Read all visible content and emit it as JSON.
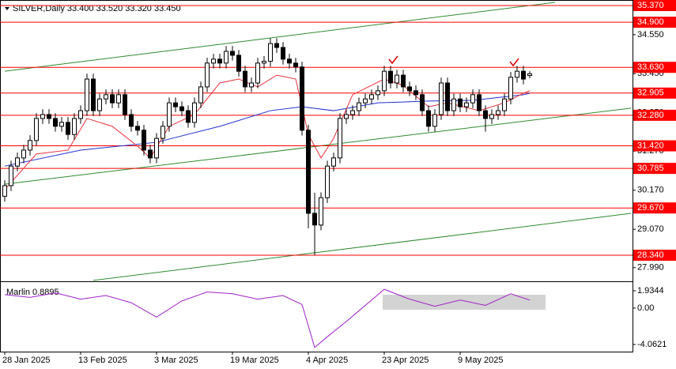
{
  "chart_data": {
    "type": "candlestick",
    "title": "SILVER,Daily  33.400 33.520 33.320 33.450",
    "categories": [
      "28 Jan 2025",
      null,
      null,
      null,
      null,
      null,
      null,
      null,
      null,
      null,
      null,
      null,
      "13 Feb 2025",
      null,
      null,
      null,
      null,
      null,
      null,
      null,
      null,
      null,
      null,
      null,
      "3 Mar 2025",
      null,
      null,
      null,
      null,
      null,
      null,
      null,
      null,
      null,
      null,
      null,
      "19 Mar 2025",
      null,
      null,
      null,
      null,
      null,
      null,
      null,
      null,
      null,
      null,
      null,
      "4 Apr 2025",
      null,
      null,
      null,
      null,
      null,
      null,
      null,
      null,
      null,
      null,
      null,
      "23 Apr 2025",
      null,
      null,
      null,
      null,
      null,
      null,
      null,
      null,
      null,
      null,
      null,
      "9 May 2025",
      null,
      null,
      null,
      null,
      null,
      null,
      null,
      null,
      null,
      null,
      null
    ],
    "open": [
      30.0,
      30.3,
      30.85,
      31.08,
      31.3,
      31.57,
      32.19,
      32.3,
      32.19,
      31.97,
      32.08,
      31.74,
      32.19,
      32.41,
      33.3,
      32.41,
      32.74,
      32.86,
      32.63,
      32.86,
      32.3,
      31.97,
      31.86,
      31.3,
      31.08,
      31.63,
      31.97,
      32.63,
      32.52,
      32.41,
      32.08,
      32.63,
      33.08,
      33.75,
      33.86,
      33.75,
      34.08,
      33.97,
      33.52,
      33.08,
      33.19,
      33.75,
      33.8,
      34.3,
      34.19,
      33.86,
      33.75,
      33.64,
      31.86,
      29.52,
      29.19,
      29.96,
      30.85,
      31.08,
      32.19,
      32.3,
      32.41,
      32.63,
      32.74,
      32.86,
      32.97,
      33.52,
      33.19,
      33.41,
      33.08,
      32.97,
      32.86,
      32.41,
      31.97,
      32.3,
      33.19,
      32.41,
      32.74,
      32.52,
      32.63,
      32.86,
      32.41,
      32.19,
      32.3,
      32.41,
      32.74,
      33.35,
      33.52,
      33.4
    ],
    "high": [
      30.45,
      31.0,
      31.23,
      31.45,
      31.72,
      32.34,
      32.45,
      32.45,
      32.34,
      32.23,
      32.23,
      32.34,
      32.56,
      33.45,
      33.45,
      32.89,
      33.01,
      33.01,
      33.01,
      33.01,
      32.45,
      32.12,
      32.01,
      31.45,
      31.78,
      32.12,
      32.78,
      32.78,
      32.67,
      32.56,
      32.78,
      33.23,
      33.9,
      34.01,
      34.01,
      34.23,
      34.23,
      34.12,
      33.67,
      33.34,
      33.9,
      33.95,
      34.45,
      34.45,
      34.34,
      34.01,
      33.9,
      33.79,
      32.01,
      30.1,
      30.11,
      31.0,
      31.23,
      32.34,
      32.45,
      32.56,
      32.78,
      32.89,
      33.01,
      33.12,
      33.67,
      33.67,
      33.56,
      33.56,
      33.23,
      33.12,
      33.01,
      32.56,
      32.45,
      33.34,
      33.34,
      32.89,
      32.89,
      32.78,
      33.01,
      33.01,
      32.56,
      32.45,
      32.56,
      32.89,
      33.5,
      33.67,
      33.67,
      33.52
    ],
    "low": [
      29.85,
      30.15,
      30.7,
      30.93,
      31.15,
      31.42,
      32.04,
      32.04,
      31.82,
      31.82,
      31.59,
      31.59,
      32.04,
      32.26,
      32.26,
      32.26,
      32.59,
      32.48,
      32.48,
      32.15,
      31.82,
      31.71,
      31.15,
      30.93,
      30.93,
      31.48,
      31.82,
      32.37,
      32.26,
      31.93,
      31.93,
      32.48,
      32.93,
      33.6,
      33.6,
      33.6,
      33.82,
      33.37,
      32.93,
      32.93,
      33.04,
      33.6,
      33.65,
      34.04,
      33.71,
      33.6,
      33.49,
      31.71,
      29.1,
      28.34,
      29.04,
      29.81,
      30.7,
      30.93,
      32.04,
      32.15,
      32.26,
      32.48,
      32.59,
      32.71,
      32.82,
      33.04,
      33.04,
      32.93,
      32.82,
      32.71,
      32.26,
      31.82,
      31.82,
      32.15,
      32.26,
      32.26,
      32.37,
      32.37,
      32.48,
      32.26,
      31.82,
      32.04,
      32.15,
      32.26,
      32.59,
      33.2,
      33.15,
      33.32
    ],
    "close": [
      30.3,
      30.85,
      31.08,
      31.3,
      31.57,
      32.19,
      32.3,
      32.19,
      31.97,
      32.08,
      31.74,
      32.19,
      32.41,
      33.3,
      32.41,
      32.74,
      32.86,
      32.63,
      32.86,
      32.3,
      31.97,
      31.86,
      31.3,
      31.08,
      31.63,
      31.97,
      32.63,
      32.52,
      32.41,
      32.08,
      32.63,
      33.08,
      33.75,
      33.86,
      33.75,
      34.08,
      33.97,
      33.52,
      33.08,
      33.19,
      33.75,
      33.8,
      34.3,
      34.19,
      33.86,
      33.75,
      33.64,
      31.86,
      29.52,
      29.19,
      29.96,
      30.85,
      31.08,
      32.19,
      32.3,
      32.41,
      32.63,
      32.74,
      32.86,
      32.97,
      33.52,
      33.19,
      33.41,
      33.08,
      32.97,
      32.86,
      32.41,
      31.97,
      32.3,
      33.19,
      32.41,
      32.74,
      32.52,
      32.63,
      32.86,
      32.41,
      32.19,
      32.3,
      32.41,
      32.74,
      33.35,
      33.52,
      33.3,
      33.45
    ],
    "ylim": [
      27.628,
      35.526
    ],
    "yticks": [
      {
        "value": 34.55,
        "label": "34.550"
      },
      {
        "value": 33.45,
        "label": "33.450"
      },
      {
        "value": 32.35,
        "label": "32.350"
      },
      {
        "value": 31.27,
        "label": "31.270"
      },
      {
        "value": 30.17,
        "label": "30.170"
      },
      {
        "value": 29.07,
        "label": "29.070"
      },
      {
        "value": 27.99,
        "label": "27.990"
      }
    ],
    "levels": [
      {
        "value": 35.37,
        "label": "35.370"
      },
      {
        "value": 34.9,
        "label": "34.900"
      },
      {
        "value": 33.63,
        "label": "33.630"
      },
      {
        "value": 32.905,
        "label": "32.905"
      },
      {
        "value": 32.28,
        "label": "32.280"
      },
      {
        "value": 31.42,
        "label": "31.420"
      },
      {
        "value": 30.785,
        "label": "30.785"
      },
      {
        "value": 29.67,
        "label": "29.670"
      },
      {
        "value": 28.34,
        "label": "28.340"
      }
    ],
    "level_color": "#ff0000",
    "trendline_color": "#2e8b2e",
    "trendlines": [
      {
        "x": [
          0,
          87
        ],
        "values": [
          33.52,
          35.46
        ]
      },
      {
        "x": [
          0,
          99
        ],
        "values": [
          30.34,
          32.48
        ]
      },
      {
        "x": [
          14,
          99
        ],
        "values": [
          27.63,
          29.52
        ]
      }
    ],
    "ma_fast": {
      "color": "#e8303a",
      "x": [
        0,
        5,
        10,
        13,
        17,
        21,
        23,
        26,
        30,
        34,
        37,
        40,
        43,
        46,
        48,
        50,
        52,
        55,
        60,
        63,
        67,
        70,
        75,
        79,
        82,
        83
      ],
      "values": [
        30.19,
        31.19,
        31.3,
        32.19,
        31.97,
        31.41,
        31.08,
        31.97,
        32.3,
        33.19,
        33.3,
        33.08,
        33.41,
        33.3,
        31.74,
        31.08,
        31.63,
        32.86,
        33.3,
        33.12,
        32.52,
        32.63,
        32.41,
        32.63,
        32.9,
        32.97
      ]
    },
    "ma_slow": {
      "color": "#1f2fd0",
      "x": [
        0,
        12,
        24,
        34,
        42,
        47,
        52,
        59,
        67,
        74,
        82,
        83
      ],
      "values": [
        30.85,
        31.3,
        31.52,
        31.97,
        32.41,
        32.52,
        32.41,
        32.63,
        32.68,
        32.7,
        32.86,
        32.9
      ]
    },
    "oscillator": {
      "name": "Marlin 0.8895",
      "color": "#a020c8",
      "x": [
        0,
        4,
        8,
        12,
        16,
        20,
        24,
        28,
        32,
        36,
        40,
        44,
        47,
        49,
        51,
        54,
        56,
        60,
        64,
        68,
        72,
        76,
        80,
        83
      ],
      "values": [
        1.5,
        1.2,
        1.7,
        1.0,
        1.4,
        0.6,
        -1.0,
        0.8,
        1.8,
        1.6,
        1.0,
        1.4,
        0.4,
        -4.4,
        -3.2,
        -1.5,
        -0.3,
        2.1,
        1.0,
        0.2,
        0.9,
        0.3,
        1.6,
        0.8895
      ],
      "ylim": [
        -4.86,
        2.816
      ],
      "yticks": [
        1.9344,
        {
          "value": 0,
          "label": "0.00"
        },
        -4.0621
      ]
    }
  }
}
